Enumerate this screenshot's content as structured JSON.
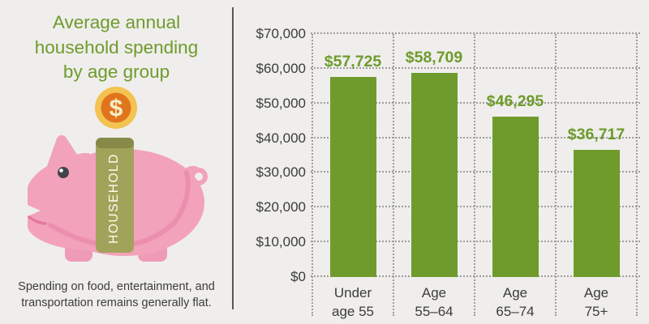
{
  "left_panel": {
    "title": "Average annual\nhousehold spending\nby age group",
    "footnote": "Spending on food, entertainment, and\ntransportation remains generally flat.",
    "piggy": {
      "band_label": "HOUSEHOLD",
      "coin_symbol": "$"
    }
  },
  "chart_data": {
    "type": "bar",
    "title": "Average annual household spending by age group",
    "categories": [
      "Under\nage 55",
      "Age\n55–64",
      "Age\n65–74",
      "Age\n75+"
    ],
    "values": [
      57725,
      58709,
      46295,
      36717
    ],
    "value_labels": [
      "$57,725",
      "$58,709",
      "$46,295",
      "$36,717"
    ],
    "ylim": [
      0,
      70000
    ],
    "ytick_step": 10000,
    "ytick_labels": [
      "$0",
      "$10,000",
      "$20,000",
      "$30,000",
      "$40,000",
      "$50,000",
      "$60,000",
      "$70,000"
    ],
    "xlabel": "",
    "ylabel": "",
    "grid": "dotted",
    "legend": "none"
  },
  "colors": {
    "background": "#efeeec",
    "green": "#6f9b2c",
    "text_dark": "#3c3c3c",
    "grid": "#9d9d9d",
    "divider": "#57585a",
    "pink": "#f2a2ba",
    "pink_dark": "#ec8fae",
    "pink_leg": "#ef9ab6",
    "mouth": "#e2799d",
    "eye": "#43434b",
    "olive": "#a2a35a",
    "olive_dark": "#878949",
    "band_text": "#fdfcf0",
    "coin_gold": "#f3c351",
    "coin_orange": "#e0751d",
    "coin_symbol_color": "#f7edc6"
  }
}
